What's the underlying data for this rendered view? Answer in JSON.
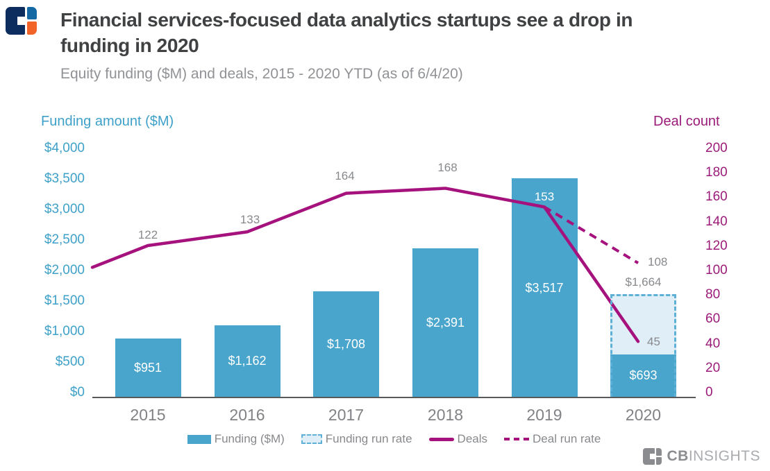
{
  "header": {
    "title_lines": [
      "Financial services-focused data analytics startups see a drop in",
      "funding in 2020"
    ],
    "subtitle": "Equity funding ($M) and deals, 2015 - 2020 YTD (as of 6/4/20)",
    "logo_name": "cb-insights-logo"
  },
  "colors": {
    "bar_blue": "#4AA5CC",
    "runrate_fill": "#E0EFF7",
    "runrate_border": "#5FB0D7",
    "line_magenta": "#A5127D",
    "left_axis_text": "#3EA0C9",
    "right_axis_text": "#9A1B78",
    "gray_label": "#87898C",
    "x_label": "#808285",
    "axis_line": "#58595B",
    "title": "#3F4142",
    "subtitle": "#909295",
    "logo_navy": "#0D2D5E",
    "logo_blue": "#1468A4",
    "logo_orange": "#F26327",
    "watermark_gray": "#8A8C8F",
    "watermark_light": "#A9ABAE"
  },
  "chart_data": {
    "type": "bar+line combo, dual axis",
    "categories": [
      "2015",
      "2016",
      "2017",
      "2018",
      "2019",
      "2020"
    ],
    "series": [
      {
        "name": "Funding ($M)",
        "type": "bar",
        "values": [
          951,
          1162,
          1708,
          2391,
          3517,
          693
        ],
        "labels": [
          "$951",
          "$1,162",
          "$1,708",
          "$2,391",
          "$3,517",
          "$693"
        ]
      },
      {
        "name": "Funding run rate",
        "type": "bar-dashed-outline",
        "category": "2020",
        "value": 1664,
        "label": "$1,664"
      },
      {
        "name": "Deals",
        "type": "line",
        "values": [
          122,
          133,
          164,
          168,
          153,
          45
        ],
        "labels": [
          "122",
          "133",
          "164",
          "168",
          "153",
          "45"
        ]
      },
      {
        "name": "Deal run rate",
        "type": "line-dashed",
        "categories": [
          "2019",
          "2020"
        ],
        "values": [
          153,
          108
        ],
        "labels": [
          "",
          "108"
        ]
      }
    ],
    "left_axis": {
      "title": "Funding amount ($M)",
      "ticks": [
        "$4,000",
        "$3,500",
        "$3,000",
        "$2,500",
        "$2,000",
        "$1,500",
        "$1,000",
        "$500",
        "$0"
      ],
      "range": [
        0,
        4000
      ]
    },
    "right_axis": {
      "title": "Deal count",
      "ticks": [
        "200",
        "180",
        "160",
        "140",
        "120",
        "100",
        "80",
        "60",
        "40",
        "20",
        "0"
      ],
      "range": [
        0,
        200
      ]
    },
    "grid": "off",
    "legend_position": "bottom"
  },
  "legend": {
    "items": [
      {
        "label": "Funding ($M)",
        "swatch": "solid-bar"
      },
      {
        "label": "Funding run rate",
        "swatch": "dashed-box"
      },
      {
        "label": "Deals",
        "swatch": "solid-line"
      },
      {
        "label": "Deal run rate",
        "swatch": "dashed-line"
      }
    ]
  },
  "watermark": {
    "bold": "CB",
    "light": "INSIGHTS"
  }
}
